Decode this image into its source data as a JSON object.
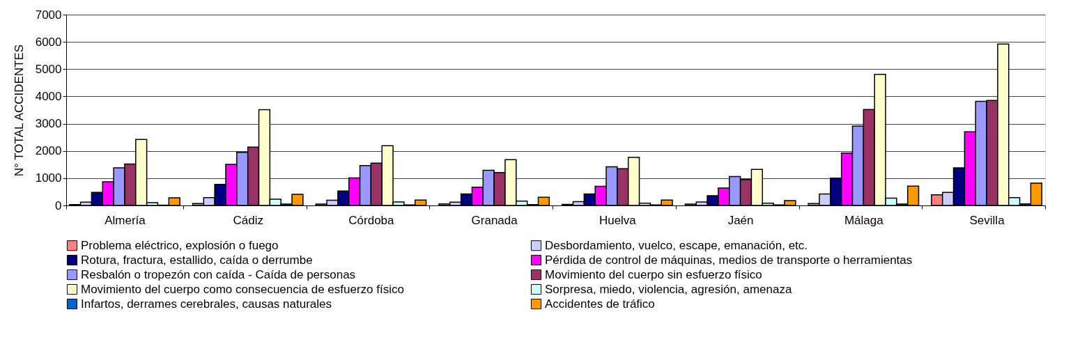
{
  "chart_data": {
    "type": "bar",
    "ylabel": "N° TOTAL ACCIDENTES",
    "categories": [
      "Almería",
      "Cádiz",
      "Córdoba",
      "Granada",
      "Huelva",
      "Jaén",
      "Málaga",
      "Sevilla"
    ],
    "series": [
      {
        "name": "Problema eléctrico, explosión o fuego",
        "color": "#ff8080",
        "values": [
          30,
          70,
          50,
          60,
          40,
          50,
          70,
          390
        ]
      },
      {
        "name": "Desbordamiento, vuelco, escape, emanación, etc.",
        "color": "#ccccff",
        "values": [
          120,
          290,
          190,
          120,
          140,
          130,
          420,
          480
        ]
      },
      {
        "name": "Rotura, fractura, estallido, caída o derrumbe",
        "color": "#000080",
        "values": [
          480,
          770,
          530,
          420,
          420,
          360,
          1000,
          1380
        ]
      },
      {
        "name": "Pérdida de control de máquinas, medios de transporte o herramientas",
        "color": "#ff00ff",
        "values": [
          870,
          1510,
          1010,
          670,
          700,
          640,
          1920,
          2700
        ]
      },
      {
        "name": "Resbalón o tropezón con caída - Caída de personas",
        "color": "#9999ff",
        "values": [
          1380,
          1950,
          1460,
          1290,
          1420,
          1060,
          2910,
          3820
        ]
      },
      {
        "name": "Movimiento del cuerpo sin esfuerzo físico",
        "color": "#993366",
        "values": [
          1520,
          2140,
          1550,
          1210,
          1350,
          950,
          3520,
          3850
        ]
      },
      {
        "name": "Movimiento del cuerpo como consecuencia de esfuerzo físico",
        "color": "#ffffcc",
        "values": [
          2420,
          3510,
          2190,
          1680,
          1760,
          1320,
          4810,
          5920
        ]
      },
      {
        "name": "Sorpresa, miedo, violencia, agresión, amenaza",
        "color": "#ccffff",
        "values": [
          100,
          230,
          130,
          160,
          80,
          80,
          270,
          290
        ]
      },
      {
        "name": "Infartos, derrames cerebrales, causas naturales",
        "color": "#0066cc",
        "values": [
          10,
          50,
          20,
          30,
          20,
          20,
          50,
          60
        ]
      },
      {
        "name": "Accidentes de tráfico",
        "color": "#ff9900",
        "values": [
          280,
          410,
          200,
          300,
          200,
          180,
          710,
          820
        ]
      }
    ],
    "ylim": [
      0,
      7000
    ],
    "yticks": [
      0,
      1000,
      2000,
      3000,
      4000,
      5000,
      6000,
      7000
    ],
    "grid": "y",
    "legend": "bottom"
  }
}
